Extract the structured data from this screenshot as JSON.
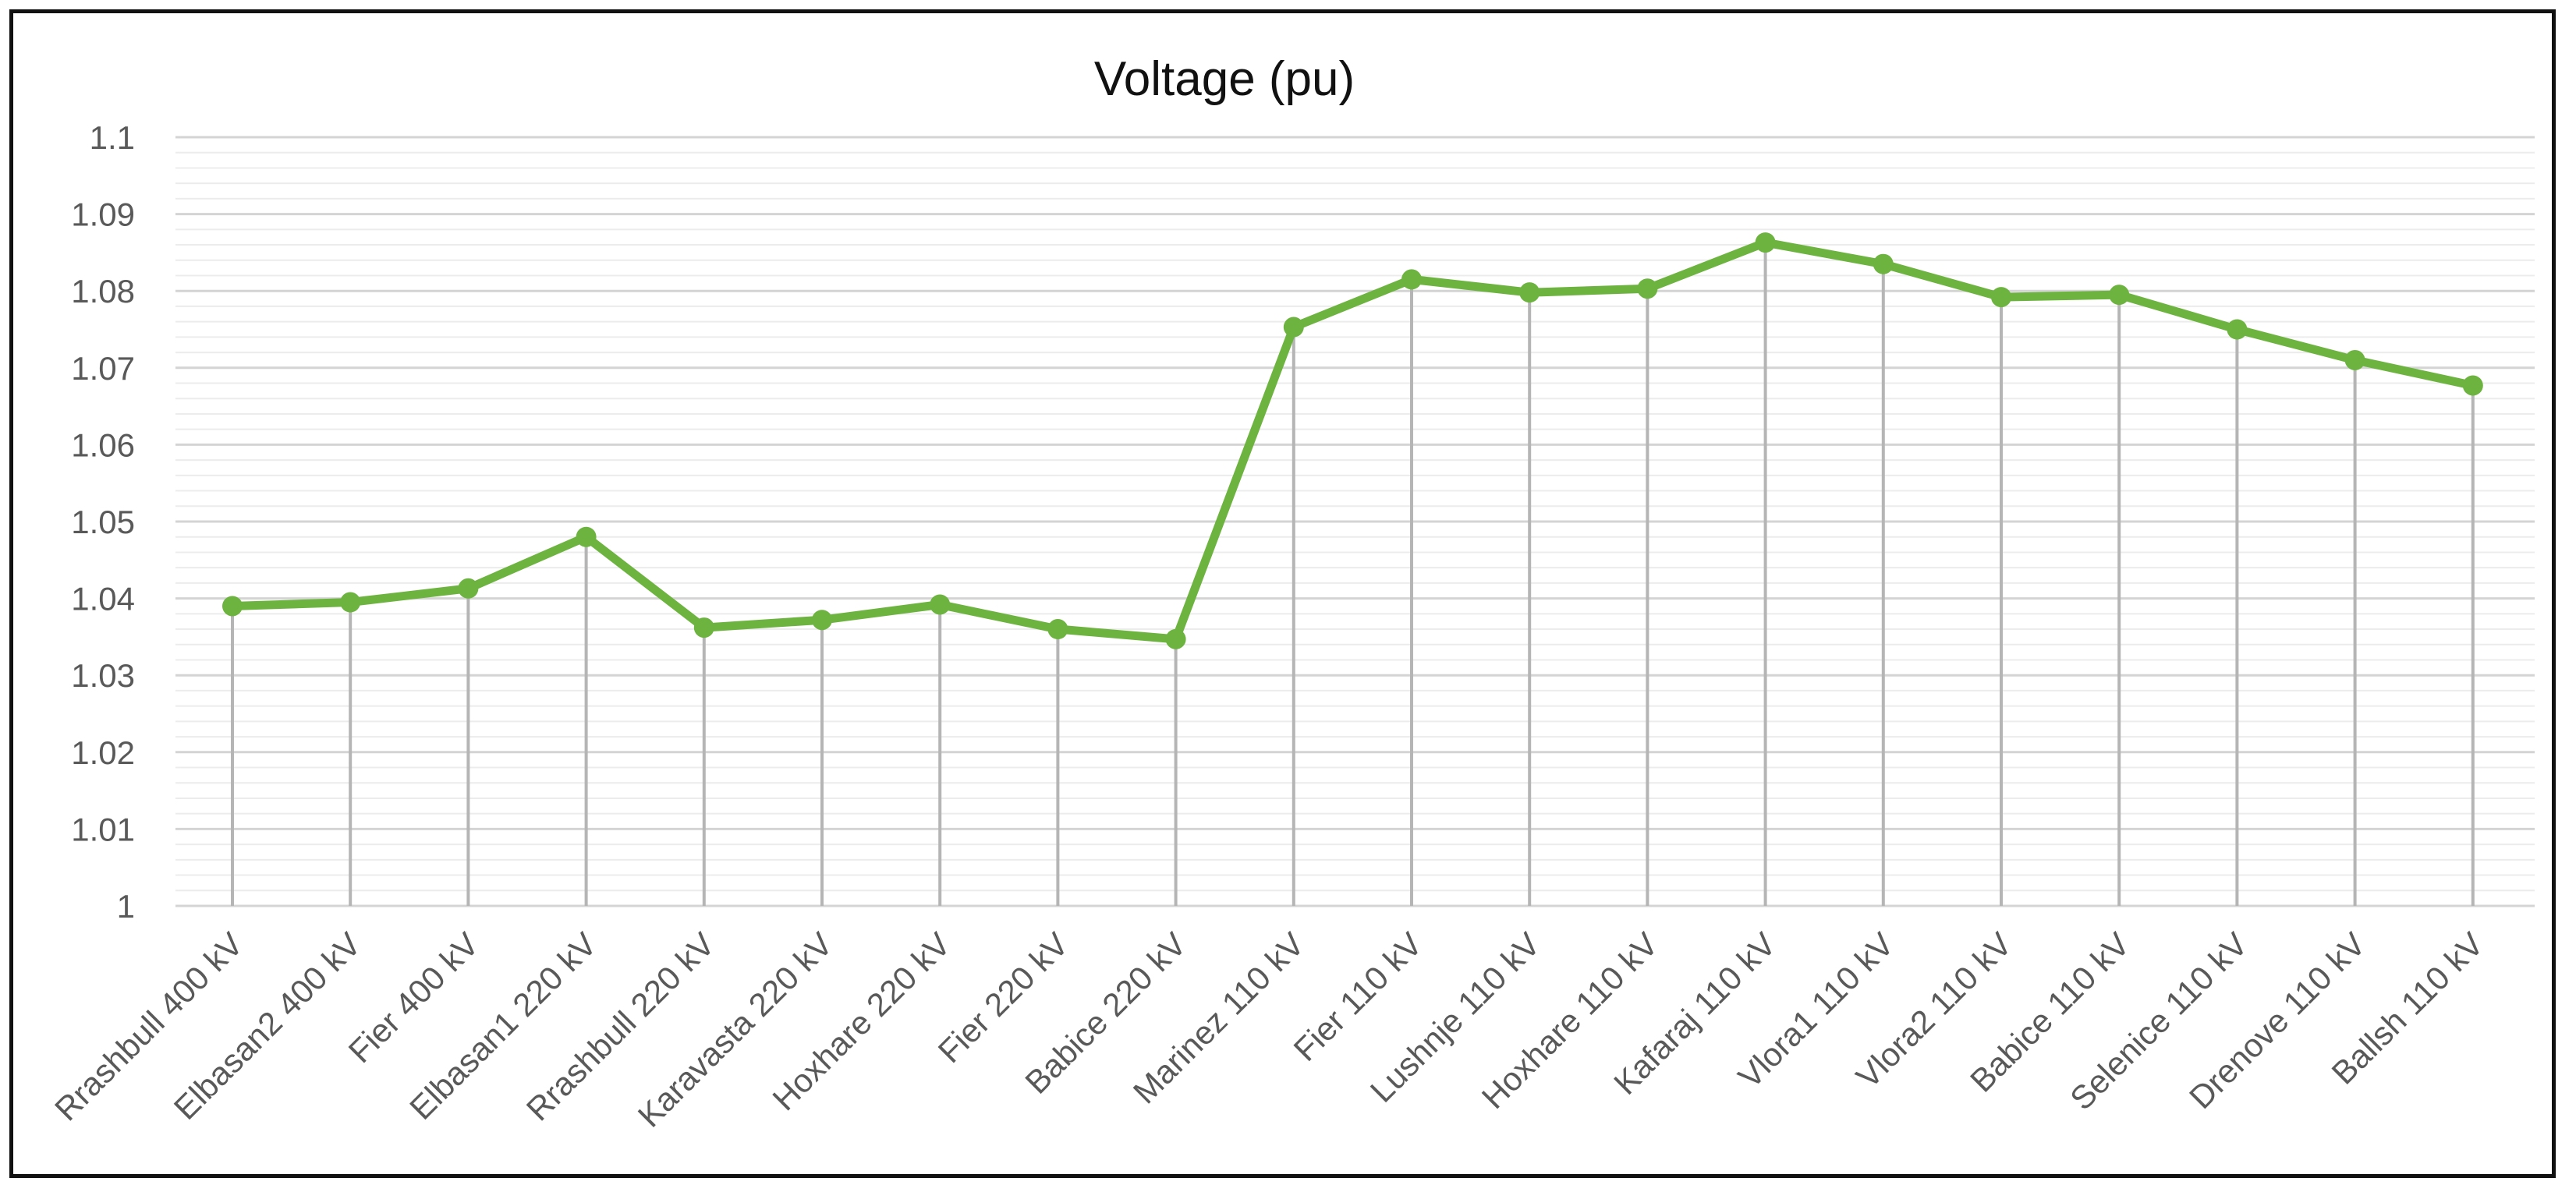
{
  "chart_data": {
    "type": "line",
    "title": "Voltage (pu)",
    "xlabel": "",
    "ylabel": "",
    "categories": [
      "Rrashbull 400 kV",
      "Elbasan2 400 kV",
      "Fier 400 kV",
      "Elbasan1 220 kV",
      "Rrashbull 220 kV",
      "Karavasta 220 kV",
      "Hoxhare 220 kV",
      "Fier 220 kV",
      "Babice 220 kV",
      "Marinez 110 kV",
      "Fier 110 kV",
      "Lushnje 110 kV",
      "Hoxhare 110 kV",
      "Kafaraj 110 kV",
      "Vlora1 110 kV",
      "Vlora2 110 kV",
      "Babice 110 kV",
      "Selenice 110 kV",
      "Drenove 110 kV",
      "Ballsh 110 kV"
    ],
    "series": [
      {
        "values": [
          1.039,
          1.0395,
          1.0413,
          1.048,
          1.0362,
          1.0372,
          1.0392,
          1.036,
          1.0347,
          1.0753,
          1.0815,
          1.0798,
          1.0803,
          1.0863,
          1.0835,
          1.0792,
          1.0795,
          1.075,
          1.071,
          1.0677
        ],
        "color": "#6db33f"
      }
    ],
    "ylim": [
      1,
      1.1
    ],
    "yticks": [
      "1",
      "1.01",
      "1.02",
      "1.03",
      "1.04",
      "1.05",
      "1.06",
      "1.07",
      "1.08",
      "1.09",
      "1.1"
    ],
    "grid": true,
    "drop_lines": true,
    "legend": "none",
    "colors": {
      "line": "#6db33f",
      "grid_major": "#d4d4d4",
      "grid_minor": "#ececec",
      "drop_line": "#b5b5b5"
    }
  }
}
